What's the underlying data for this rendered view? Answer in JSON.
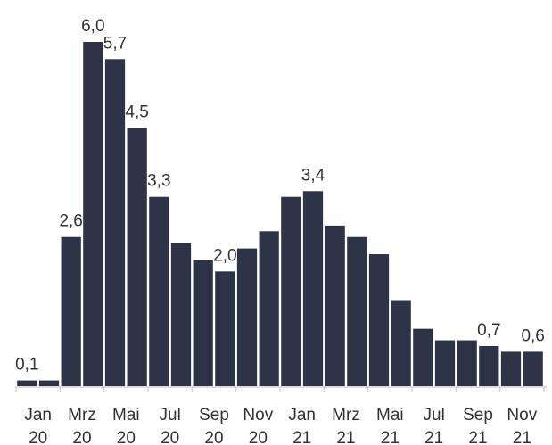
{
  "chart_data": {
    "type": "bar",
    "categories": [
      "Jan 20",
      null,
      "Mrz 20",
      null,
      "Mai 20",
      null,
      "Jul 20",
      null,
      "Sep 20",
      null,
      "Nov 20",
      null,
      "Jan 21",
      null,
      "Mrz 21",
      null,
      "Mai 21",
      null,
      "Jul 21",
      null,
      "Sep 21",
      null,
      "Nov 21",
      null
    ],
    "values": [
      0.1,
      0.1,
      2.6,
      6.0,
      5.7,
      4.5,
      3.3,
      2.5,
      2.2,
      2.0,
      2.4,
      2.7,
      3.3,
      3.4,
      2.8,
      2.6,
      2.3,
      1.5,
      1.0,
      0.8,
      0.8,
      0.7,
      0.6,
      0.6
    ],
    "value_labels": [
      "0,1",
      null,
      "2,6",
      "6,0",
      "5,7",
      "4,5",
      "3,3",
      null,
      null,
      "2,0",
      null,
      null,
      null,
      "3,4",
      null,
      null,
      null,
      null,
      null,
      null,
      null,
      "0,7",
      null,
      "0,6"
    ],
    "color": "#2d3447"
  }
}
